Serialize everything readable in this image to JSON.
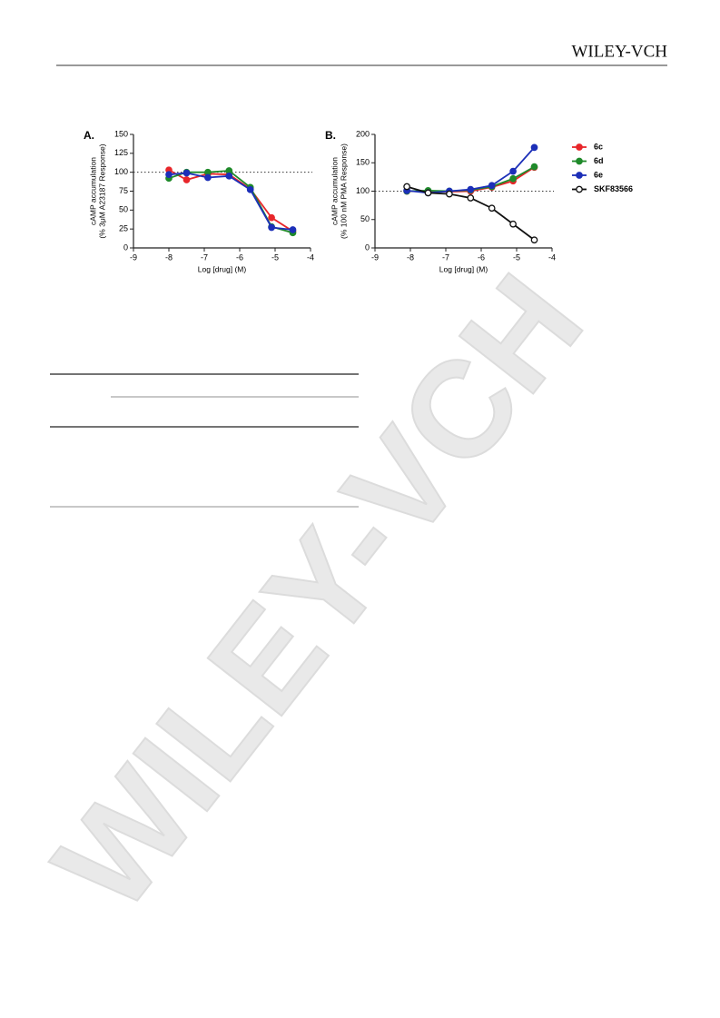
{
  "header": {
    "publisher": "WILEY-VCH"
  },
  "watermark": "WILEY-VCH",
  "chart_data": [
    {
      "type": "line",
      "panel": "A.",
      "y_label": [
        "cAMP accumulation",
        "(% 3μM A23187 Response)"
      ],
      "x_label": "Log [drug] (M)",
      "x": [
        -8,
        -7.5,
        -6.9,
        -6.3,
        -5.7,
        -5.1,
        -4.5
      ],
      "xlim": [
        -9,
        -4
      ],
      "xticks": [
        -9,
        -8,
        -7,
        -6,
        -5,
        -4
      ],
      "ylim": [
        0,
        150
      ],
      "yticks": [
        0,
        25,
        50,
        75,
        100,
        125,
        150
      ],
      "reference_line": 100,
      "series": [
        {
          "name": "6c",
          "color": "#e8262a",
          "values": [
            103,
            90,
            98,
            97,
            78,
            40,
            22
          ]
        },
        {
          "name": "6d",
          "color": "#1f8a2a",
          "values": [
            92,
            100,
            100,
            102,
            80,
            28,
            20
          ]
        },
        {
          "name": "6e",
          "color": "#1c2fb8",
          "values": [
            97,
            99,
            93,
            95,
            77,
            27,
            24
          ]
        }
      ]
    },
    {
      "type": "line",
      "panel": "B.",
      "y_label": [
        "cAMP accumulation",
        "(% 100 nM PMA Response)"
      ],
      "x_label": "Log [drug] (M)",
      "x": [
        -8.1,
        -7.5,
        -6.9,
        -6.3,
        -5.7,
        -5.1,
        -4.5
      ],
      "xlim": [
        -9,
        -4
      ],
      "xticks": [
        -9,
        -8,
        -7,
        -6,
        -5,
        -4
      ],
      "ylim": [
        0,
        200
      ],
      "yticks": [
        0,
        50,
        100,
        150,
        200
      ],
      "reference_line": 100,
      "legend": "right",
      "series": [
        {
          "name": "6c",
          "color": "#e8262a",
          "values": [
            100,
            100,
            99,
            100,
            107,
            118,
            142
          ]
        },
        {
          "name": "6d",
          "color": "#1f8a2a",
          "values": [
            100,
            101,
            100,
            102,
            108,
            122,
            143
          ]
        },
        {
          "name": "6e",
          "color": "#1c2fb8",
          "values": [
            101,
            97,
            100,
            103,
            110,
            135,
            177
          ]
        },
        {
          "name": "SKF83566",
          "color": "#111111",
          "open": true,
          "values": [
            108,
            97,
            95,
            88,
            70,
            42,
            14
          ]
        }
      ]
    }
  ]
}
